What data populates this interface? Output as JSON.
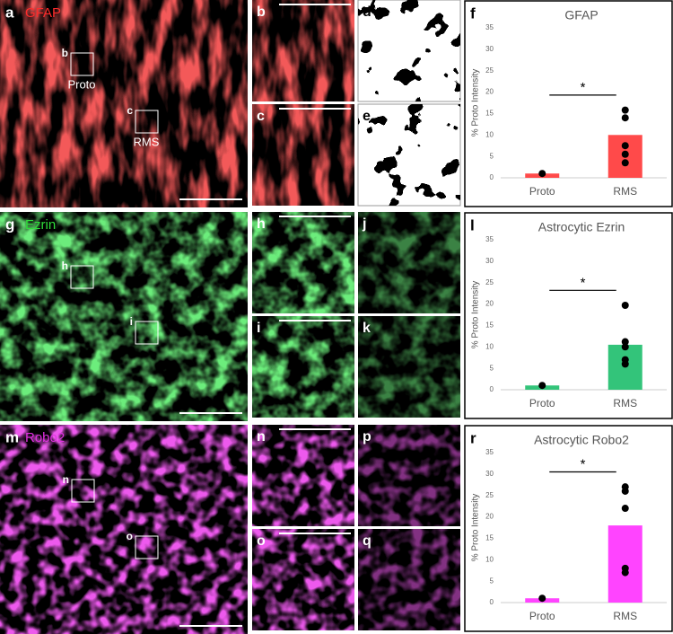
{
  "micrographs": [
    {
      "letter": "a",
      "stain": "GFAP",
      "insets": [
        {
          "letter": "b",
          "label": "Proto"
        },
        {
          "letter": "c",
          "label": "RMS"
        }
      ],
      "side_panels": [
        "b",
        "c",
        "d",
        "e"
      ]
    },
    {
      "letter": "g",
      "stain": "Ezrin",
      "insets": [
        {
          "letter": "h"
        },
        {
          "letter": "i"
        }
      ],
      "side_panels": [
        "h",
        "i",
        "j",
        "k"
      ]
    },
    {
      "letter": "m",
      "stain": "Robo2",
      "insets": [
        {
          "letter": "n"
        },
        {
          "letter": "o"
        }
      ],
      "side_panels": [
        "n",
        "o",
        "p",
        "q"
      ]
    }
  ],
  "chart_data": [
    {
      "type": "bar",
      "letter": "f",
      "title": "GFAP",
      "ylabel": "% Proto Intensity",
      "categories": [
        "Proto",
        "RMS"
      ],
      "values": [
        1,
        10
      ],
      "points": [
        [
          1
        ],
        [
          15.8,
          14,
          7.5,
          5.5,
          3.5
        ]
      ],
      "color": "#ff4a4a",
      "annotation": "*",
      "ylim": [
        0,
        35
      ],
      "yticks": [
        0,
        5,
        10,
        15,
        20,
        25,
        30,
        35
      ]
    },
    {
      "type": "bar",
      "letter": "l",
      "title": "Astrocytic Ezrin",
      "ylabel": "% Proto Intensity",
      "categories": [
        "Proto",
        "RMS"
      ],
      "values": [
        1,
        10.5
      ],
      "points": [
        [
          1
        ],
        [
          19.7,
          11.2,
          10,
          7,
          6
        ]
      ],
      "color": "#33c47a",
      "annotation": "*",
      "ylim": [
        0,
        35
      ],
      "yticks": [
        0,
        5,
        10,
        15,
        20,
        25,
        30,
        35
      ]
    },
    {
      "type": "bar",
      "letter": "r",
      "title": "Astrocytic Robo2",
      "ylabel": "% Proto Intensity",
      "categories": [
        "Proto",
        "RMS"
      ],
      "values": [
        1,
        18
      ],
      "points": [
        [
          1
        ],
        [
          27,
          26,
          22,
          8,
          7
        ]
      ],
      "color": "#ff44ff",
      "annotation": "*",
      "ylim": [
        0,
        35
      ],
      "yticks": [
        0,
        5,
        10,
        15,
        20,
        25,
        30,
        35
      ]
    }
  ]
}
